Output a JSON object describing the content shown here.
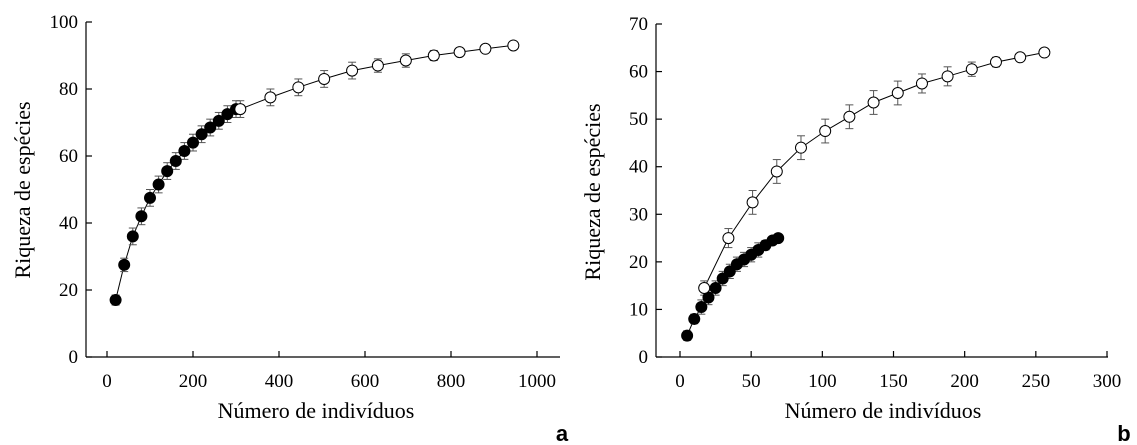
{
  "chart_data": [
    {
      "type": "scatter",
      "panel_label": "a",
      "xlabel": "Número de indivíduos",
      "ylabel": "Riqueza de espécies",
      "xlim": [
        -50,
        1000
      ],
      "ylim": [
        0,
        100
      ],
      "xticks": [
        0,
        200,
        400,
        600,
        800,
        1000
      ],
      "yticks": [
        0,
        20,
        40,
        60,
        80,
        100
      ],
      "grid": false,
      "series": [
        {
          "marker": "filled-circle",
          "x": [
            20,
            40,
            60,
            80,
            100,
            120,
            140,
            160,
            180,
            200,
            220,
            240,
            260,
            280,
            300
          ],
          "y": [
            17,
            27.5,
            36,
            42,
            47.5,
            51.5,
            55.5,
            58.5,
            61.5,
            64,
            66.5,
            68.5,
            70.5,
            72.5,
            74
          ],
          "err": [
            1.5,
            2,
            2.5,
            2.5,
            2.5,
            2.5,
            2.5,
            2.5,
            2.5,
            2.5,
            2.5,
            2.5,
            2.5,
            2.5,
            2.5
          ]
        },
        {
          "marker": "open-circle",
          "x": [
            310,
            380,
            445,
            505,
            570,
            630,
            695,
            760,
            820,
            880,
            945
          ],
          "y": [
            74,
            77.5,
            80.5,
            83,
            85.5,
            87,
            88.5,
            90,
            91,
            92,
            93
          ],
          "err": [
            2.5,
            2.5,
            2.5,
            2.5,
            2.5,
            2,
            2,
            1.5,
            1,
            0.5,
            0.5
          ]
        }
      ]
    },
    {
      "type": "scatter",
      "panel_label": "b",
      "xlabel": "Número de indivíduos",
      "ylabel": "Riqueza de espécies",
      "xlim": [
        -15,
        300
      ],
      "ylim": [
        0,
        70
      ],
      "xticks": [
        0,
        50,
        100,
        150,
        200,
        250,
        300
      ],
      "yticks": [
        0,
        10,
        20,
        30,
        40,
        50,
        60,
        70
      ],
      "grid": false,
      "series": [
        {
          "marker": "filled-circle",
          "x": [
            5,
            10,
            15,
            20,
            25,
            30,
            35,
            40,
            45,
            50,
            55,
            60,
            65,
            69
          ],
          "y": [
            4.5,
            8,
            10.5,
            12.5,
            14.5,
            16.5,
            18,
            19.5,
            20.5,
            21.5,
            22.5,
            23.5,
            24.5,
            25
          ],
          "err": [
            1,
            1,
            1.5,
            1.5,
            1.5,
            1.5,
            1.5,
            1.5,
            1.5,
            1.5,
            1.5,
            1,
            0.5,
            0.5
          ]
        },
        {
          "marker": "open-circle",
          "x": [
            17,
            34,
            51,
            68,
            85,
            102,
            119,
            136,
            153,
            170,
            188,
            205,
            222,
            239,
            256
          ],
          "y": [
            14.5,
            25,
            32.5,
            39,
            44,
            47.5,
            50.5,
            53.5,
            55.5,
            57.5,
            59,
            60.5,
            62,
            63,
            64
          ],
          "err": [
            1.5,
            2,
            2.5,
            2.5,
            2.5,
            2.5,
            2.5,
            2.5,
            2.5,
            2,
            2,
            1.5,
            1,
            0.5,
            0.5
          ]
        }
      ]
    }
  ]
}
